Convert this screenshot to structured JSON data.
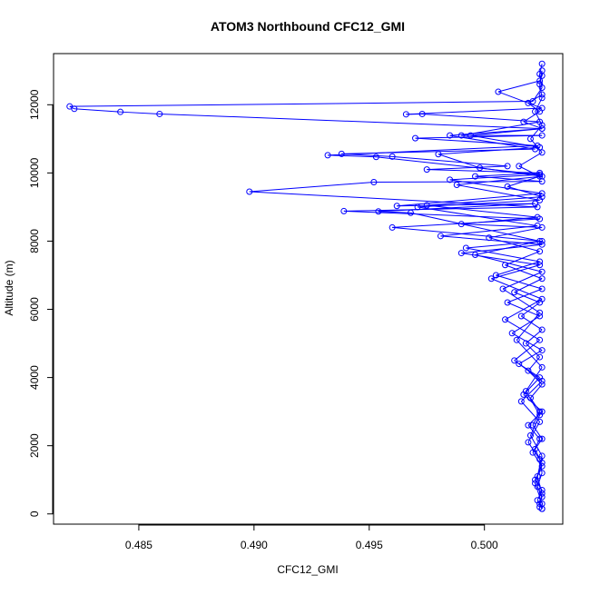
{
  "chart_data": {
    "type": "line",
    "title": "ATOM3 Northbound CFC12_GMI",
    "xlabel": "CFC12_GMI",
    "ylabel": "Altitude (m)",
    "xlim": [
      0.4813,
      0.5034
    ],
    "ylim": [
      -300,
      13500
    ],
    "x_ticks": [
      0.485,
      0.49,
      0.495,
      0.5
    ],
    "x_tick_labels": [
      "0.485",
      "0.490",
      "0.495",
      "0.500"
    ],
    "y_ticks": [
      0,
      2000,
      4000,
      6000,
      8000,
      10000,
      12000
    ],
    "y_tick_labels": [
      "0",
      "2000",
      "4000",
      "6000",
      "8000",
      "10000",
      "12000"
    ],
    "grid": false,
    "legend": "none",
    "line_style": "lines with open circle markers",
    "color": "#0000ff",
    "series": [
      {
        "points": [
          [
            0.5025,
            150
          ],
          [
            0.5024,
            300
          ],
          [
            0.5025,
            500
          ],
          [
            0.5023,
            800
          ],
          [
            0.5025,
            1200
          ],
          [
            0.5024,
            1600
          ],
          [
            0.5022,
            1900
          ],
          [
            0.5025,
            2200
          ],
          [
            0.5021,
            2600
          ],
          [
            0.5024,
            3000
          ],
          [
            0.502,
            3400
          ],
          [
            0.5025,
            3800
          ],
          [
            0.5019,
            4200
          ],
          [
            0.5024,
            4600
          ],
          [
            0.5018,
            5000
          ],
          [
            0.5025,
            5400
          ],
          [
            0.5016,
            5800
          ],
          [
            0.5024,
            6200
          ],
          [
            0.5013,
            6500
          ],
          [
            0.5025,
            6900
          ],
          [
            0.5009,
            7300
          ],
          [
            0.5024,
            7700
          ],
          [
            0.5002,
            8100
          ],
          [
            0.5025,
            8400
          ],
          [
            0.499,
            8500
          ],
          [
            0.5023,
            8700
          ],
          [
            0.4975,
            9050
          ],
          [
            0.5025,
            9300
          ],
          [
            0.501,
            9600
          ],
          [
            0.5024,
            9900
          ],
          [
            0.5015,
            10200
          ],
          [
            0.5025,
            10600
          ],
          [
            0.502,
            11000
          ],
          [
            0.5025,
            11400
          ],
          [
            0.5022,
            11800
          ],
          [
            0.5025,
            12200
          ],
          [
            0.5024,
            12600
          ],
          [
            0.5025,
            13000
          ]
        ]
      },
      {
        "points": [
          [
            0.5025,
            150
          ],
          [
            0.5023,
            400
          ],
          [
            0.5025,
            700
          ],
          [
            0.5022,
            1000
          ],
          [
            0.5025,
            1400
          ],
          [
            0.5021,
            1800
          ],
          [
            0.5024,
            2200
          ],
          [
            0.5019,
            2600
          ],
          [
            0.5025,
            3000
          ],
          [
            0.5017,
            3500
          ],
          [
            0.5024,
            4000
          ],
          [
            0.5015,
            4400
          ],
          [
            0.5025,
            4800
          ],
          [
            0.5012,
            5300
          ],
          [
            0.5024,
            5800
          ],
          [
            0.501,
            6200
          ],
          [
            0.5025,
            6600
          ],
          [
            0.5005,
            7000
          ],
          [
            0.5024,
            7400
          ],
          [
            0.4992,
            7800
          ],
          [
            0.5025,
            8000
          ],
          [
            0.496,
            8400
          ],
          [
            0.5024,
            8650
          ],
          [
            0.4939,
            8880
          ],
          [
            0.5023,
            9000
          ],
          [
            0.4898,
            9450
          ],
          [
            0.4952,
            9730
          ],
          [
            0.5025,
            9750
          ],
          [
            0.4996,
            9900
          ],
          [
            0.5024,
            10000
          ],
          [
            0.4975,
            10100
          ],
          [
            0.501,
            10200
          ],
          [
            0.496,
            10480
          ],
          [
            0.4938,
            10560
          ],
          [
            0.5022,
            10700
          ],
          [
            0.4985,
            11100
          ],
          [
            0.5025,
            11300
          ],
          [
            0.4859,
            11730
          ],
          [
            0.4842,
            11790
          ],
          [
            0.4822,
            11880
          ],
          [
            0.482,
            11950
          ],
          [
            0.5021,
            12100
          ],
          [
            0.5025,
            12500
          ],
          [
            0.5024,
            12900
          ],
          [
            0.5025,
            13200
          ]
        ]
      },
      {
        "points": [
          [
            0.5024,
            200
          ],
          [
            0.5025,
            600
          ],
          [
            0.5023,
            1100
          ],
          [
            0.5025,
            1700
          ],
          [
            0.502,
            2300
          ],
          [
            0.5024,
            2900
          ],
          [
            0.5018,
            3600
          ],
          [
            0.5025,
            4300
          ],
          [
            0.5014,
            5100
          ],
          [
            0.5024,
            5900
          ],
          [
            0.5008,
            6600
          ],
          [
            0.5025,
            7100
          ],
          [
            0.4996,
            7600
          ],
          [
            0.5024,
            8000
          ],
          [
            0.4968,
            8830
          ],
          [
            0.4954,
            8870
          ],
          [
            0.5022,
            9100
          ],
          [
            0.4962,
            9030
          ],
          [
            0.5025,
            9400
          ],
          [
            0.4985,
            9800
          ],
          [
            0.5024,
            9950
          ],
          [
            0.4953,
            10470
          ],
          [
            0.4932,
            10520
          ],
          [
            0.5023,
            10800
          ],
          [
            0.497,
            11020
          ],
          [
            0.5025,
            11100
          ],
          [
            0.499,
            11100
          ],
          [
            0.5024,
            11500
          ],
          [
            0.4973,
            11730
          ],
          [
            0.4966,
            11720
          ],
          [
            0.5025,
            11900
          ],
          [
            0.5006,
            12380
          ],
          [
            0.5024,
            12700
          ],
          [
            0.5025,
            12850
          ]
        ]
      },
      {
        "points": [
          [
            0.5025,
            300
          ],
          [
            0.5022,
            900
          ],
          [
            0.5025,
            1500
          ],
          [
            0.5019,
            2100
          ],
          [
            0.5024,
            2700
          ],
          [
            0.5016,
            3300
          ],
          [
            0.5025,
            3900
          ],
          [
            0.5013,
            4500
          ],
          [
            0.5024,
            5100
          ],
          [
            0.5009,
            5700
          ],
          [
            0.5025,
            6300
          ],
          [
            0.5003,
            6900
          ],
          [
            0.5024,
            7300
          ],
          [
            0.499,
            7650
          ],
          [
            0.5025,
            7900
          ],
          [
            0.4981,
            8150
          ],
          [
            0.5023,
            8450
          ],
          [
            0.4971,
            9000
          ],
          [
            0.5024,
            9200
          ],
          [
            0.4988,
            9650
          ],
          [
            0.5025,
            9900
          ],
          [
            0.4998,
            10150
          ],
          [
            0.498,
            10550
          ],
          [
            0.5024,
            10750
          ],
          [
            0.4994,
            11100
          ],
          [
            0.5025,
            11300
          ],
          [
            0.5017,
            11500
          ],
          [
            0.5024,
            11800
          ],
          [
            0.5019,
            12050
          ],
          [
            0.5025,
            12300
          ]
        ]
      }
    ]
  }
}
